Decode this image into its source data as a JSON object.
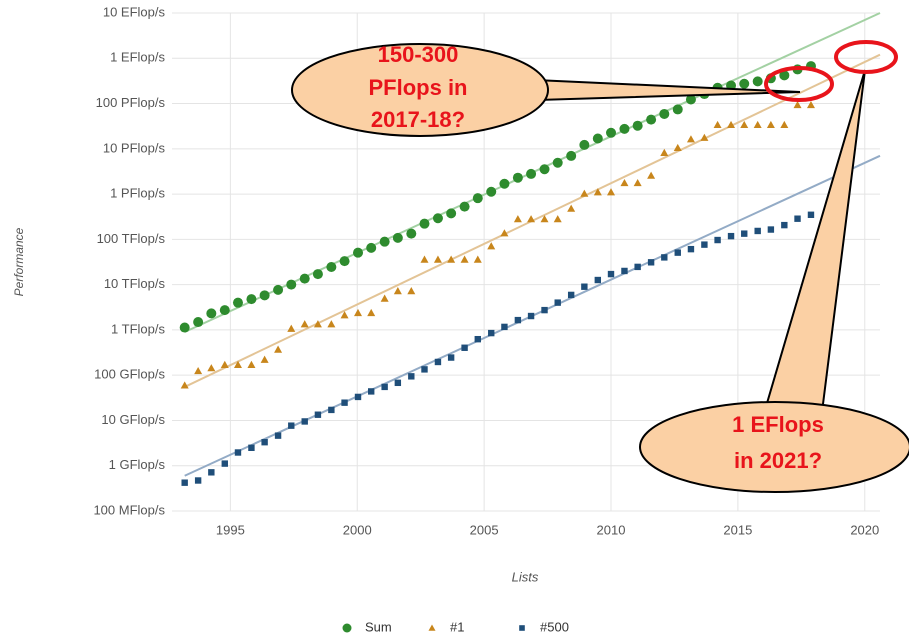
{
  "chart_data": {
    "type": "scatter",
    "y_label": "Performance",
    "x_label": "Lists",
    "yscale": "log",
    "grid": true,
    "legend": "bottom",
    "xlim": [
      1992.7,
      2020.6
    ],
    "xticks": [
      1995,
      2000,
      2005,
      2010,
      2015,
      2020
    ],
    "ylim": [
      0.1,
      10000000000
    ],
    "yticks": [
      {
        "value": 0.1,
        "label": "100 MFlop/s"
      },
      {
        "value": 1,
        "label": "1 GFlop/s"
      },
      {
        "value": 10,
        "label": "10 GFlop/s"
      },
      {
        "value": 100,
        "label": "100 GFlop/s"
      },
      {
        "value": 1000,
        "label": "1 TFlop/s"
      },
      {
        "value": 10000,
        "label": "10 TFlop/s"
      },
      {
        "value": 100000,
        "label": "100 TFlop/s"
      },
      {
        "value": 1000000,
        "label": "1 PFlop/s"
      },
      {
        "value": 10000000,
        "label": "10 PFlop/s"
      },
      {
        "value": 100000000,
        "label": "100 PFlop/s"
      },
      {
        "value": 1000000000,
        "label": "1 EFlop/s"
      },
      {
        "value": 10000000000,
        "label": "10 EFlop/s"
      }
    ],
    "x": [
      1993.2,
      1993.73,
      1994.25,
      1994.78,
      1995.3,
      1995.83,
      1996.35,
      1996.88,
      1997.4,
      1997.93,
      1998.45,
      1998.98,
      1999.5,
      2000.03,
      2000.55,
      2001.08,
      2001.6,
      2002.13,
      2002.65,
      2003.18,
      2003.7,
      2004.23,
      2004.75,
      2005.28,
      2005.8,
      2006.33,
      2006.85,
      2007.38,
      2007.9,
      2008.43,
      2008.95,
      2009.48,
      2010.0,
      2010.53,
      2011.05,
      2011.58,
      2012.1,
      2012.63,
      2013.15,
      2013.68,
      2014.2,
      2014.73,
      2015.25,
      2015.78,
      2016.3,
      2016.83,
      2017.35,
      2017.88
    ],
    "series": [
      {
        "name": "Sum",
        "color": "#2e8b2e",
        "marker": "circle",
        "values": [
          1128,
          1493,
          2317,
          2732,
          3993,
          4780,
          5807,
          7670,
          10030,
          13560,
          17100,
          24500,
          33100,
          50800,
          64900,
          88900,
          108000,
          134000,
          222000,
          293000,
          375000,
          528000,
          813000,
          1127000,
          1690000,
          2300000,
          2790000,
          3540000,
          4920000,
          6970000,
          12200000,
          16900000,
          22600000,
          27600000,
          32400000,
          44200000,
          58900000,
          74200000,
          123000000,
          162000000,
          223000000,
          250000000,
          274000000,
          309000000,
          361000000,
          420000000,
          567000000,
          672000000
        ],
        "trend": {
          "x": [
            1993.2,
            2020.6
          ],
          "values": [
            900,
            10000000000
          ],
          "color": "#a3d1a3"
        }
      },
      {
        "name": "#1",
        "color": "#c8861c",
        "marker": "triangle",
        "values": [
          59.7,
          124,
          143.4,
          170,
          170,
          170,
          220.4,
          368.2,
          1068,
          1338,
          1338,
          1338,
          2121,
          2379,
          2379,
          4938,
          7226,
          7226,
          35860,
          35860,
          35860,
          35860,
          35860,
          70720,
          136800,
          280600,
          280600,
          280600,
          280600,
          478200,
          1026000,
          1105000,
          1105000,
          1759000,
          1759000,
          2566000,
          8162000,
          10510000,
          16320000,
          17590000,
          33860000,
          33860000,
          33860000,
          33860000,
          33860000,
          33860000,
          93010000,
          93010000
        ],
        "trend": {
          "x": [
            1993.2,
            2020.6
          ],
          "values": [
            55,
            1200000000
          ],
          "color": "#e3c496"
        }
      },
      {
        "name": "#500",
        "color": "#1f4e79",
        "marker": "square",
        "values": [
          0.422,
          0.472,
          0.715,
          1.114,
          1.96,
          2.49,
          3.31,
          4.62,
          7.67,
          9.51,
          13.39,
          17.1,
          24.7,
          33.1,
          43.8,
          55.1,
          67.8,
          94.3,
          134.3,
          195.8,
          245.1,
          403.4,
          624,
          850.6,
          1166,
          1646,
          2026,
          2737,
          4005,
          5929,
          9000,
          12640,
          17100,
          20050,
          24670,
          31120,
          39980,
          50900,
          60800,
          76500,
          96620,
          117830,
          133700,
          153380,
          164800,
          206400,
          286000,
          349000
        ],
        "trend": {
          "x": [
            1993.2,
            2020.6
          ],
          "values": [
            0.6,
            7000000
          ],
          "color": "#93abc6"
        }
      }
    ],
    "annotations": [
      {
        "lines": [
          "150-300",
          "PFlops in",
          "2017-18?"
        ]
      },
      {
        "lines": [
          "1 EFlops",
          "in 2021?"
        ]
      }
    ]
  }
}
